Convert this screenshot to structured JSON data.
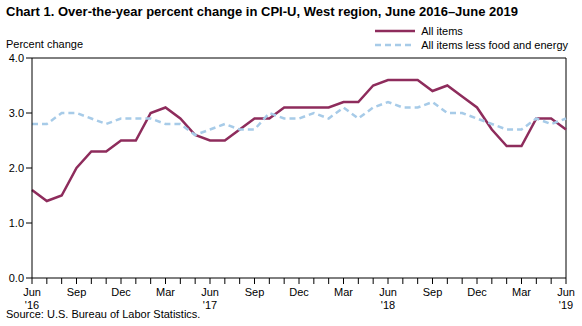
{
  "chart_data": {
    "type": "line",
    "title": "Chart 1. Over-the-year percent change in CPI-U, West region, June 2016–June 2019",
    "y_label": "Percent change",
    "source": "Source: U.S. Bureau of Labor Statistics.",
    "categories": [
      "Jun\n'16",
      null,
      null,
      "Sep",
      null,
      null,
      "Dec",
      null,
      null,
      "Mar",
      null,
      null,
      "Jun\n'17",
      null,
      null,
      "Sep",
      null,
      null,
      "Dec",
      null,
      null,
      "Mar",
      null,
      null,
      "Jun\n'18",
      null,
      null,
      "Sep",
      null,
      null,
      "Dec",
      null,
      null,
      "Mar",
      null,
      null,
      "Jun\n'19"
    ],
    "series": [
      {
        "name": "All items",
        "color": "#8e2c5c",
        "line_style": "solid",
        "values": [
          1.6,
          1.4,
          1.5,
          2.0,
          2.3,
          2.3,
          2.5,
          2.5,
          3.0,
          3.1,
          2.9,
          2.6,
          2.5,
          2.5,
          2.7,
          2.9,
          2.9,
          3.1,
          3.1,
          3.1,
          3.1,
          3.2,
          3.2,
          3.5,
          3.6,
          3.6,
          3.6,
          3.4,
          3.5,
          3.3,
          3.1,
          2.7,
          2.4,
          2.4,
          2.9,
          2.9,
          2.7
        ]
      },
      {
        "name": "All items less food and energy",
        "color": "#a7cbe8",
        "line_style": "dashed",
        "values": [
          2.8,
          2.8,
          3.0,
          3.0,
          2.9,
          2.8,
          2.9,
          2.9,
          2.9,
          2.8,
          2.8,
          2.6,
          2.7,
          2.8,
          2.7,
          2.7,
          3.0,
          2.9,
          2.9,
          3.0,
          2.9,
          3.1,
          2.9,
          3.1,
          3.2,
          3.1,
          3.1,
          3.2,
          3.0,
          3.0,
          2.9,
          2.8,
          2.7,
          2.7,
          2.9,
          2.8,
          2.9
        ]
      }
    ],
    "ylim": [
      0,
      4
    ],
    "yticks": [
      {
        "value": 0,
        "label": "0.0"
      },
      {
        "value": 1,
        "label": "1.0"
      },
      {
        "value": 2,
        "label": "2.0"
      },
      {
        "value": 3,
        "label": "3.0"
      },
      {
        "value": 4,
        "label": "4.0"
      }
    ],
    "grid": false,
    "legend": "upper right"
  }
}
